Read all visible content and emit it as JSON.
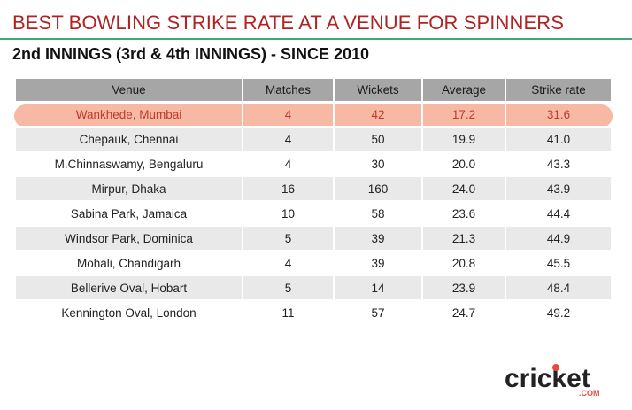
{
  "header": {
    "title": "BEST BOWLING STRIKE RATE AT A VENUE FOR SPINNERS",
    "subtitle": "2nd INNINGS (3rd & 4th INNINGS) - SINCE 2010"
  },
  "table": {
    "columns": [
      "Venue",
      "Matches",
      "Wickets",
      "Average",
      "Strike rate"
    ],
    "rows": [
      [
        "Wankhede, Mumbai",
        "4",
        "42",
        "17.2",
        "31.6"
      ],
      [
        "Chepauk, Chennai",
        "4",
        "50",
        "19.9",
        "41.0"
      ],
      [
        "M.Chinnaswamy, Bengaluru",
        "4",
        "30",
        "20.0",
        "43.3"
      ],
      [
        "Mirpur, Dhaka",
        "16",
        "160",
        "24.0",
        "43.9"
      ],
      [
        "Sabina Park, Jamaica",
        "10",
        "58",
        "23.6",
        "44.4"
      ],
      [
        "Windsor Park, Dominica",
        "5",
        "39",
        "21.3",
        "44.9"
      ],
      [
        "Mohali, Chandigarh",
        "4",
        "39",
        "20.8",
        "45.5"
      ],
      [
        "Bellerive Oval, Hobart",
        "5",
        "14",
        "23.9",
        "48.4"
      ],
      [
        "Kennington Oval, London",
        "11",
        "57",
        "24.7",
        "49.2"
      ]
    ],
    "highlighted_row_index": 0
  },
  "logo": {
    "wordmark": "cricket",
    "suffix": ".COM"
  },
  "colors": {
    "title": "#b22222",
    "rule": "#3fa77a",
    "header_bg": "#a6a6a6",
    "highlight_bg": "#f7b9a4",
    "highlight_text": "#c0392b",
    "stripe": "#e9e9e9",
    "logo_text": "#222222",
    "logo_accent": "#e74c3c"
  }
}
